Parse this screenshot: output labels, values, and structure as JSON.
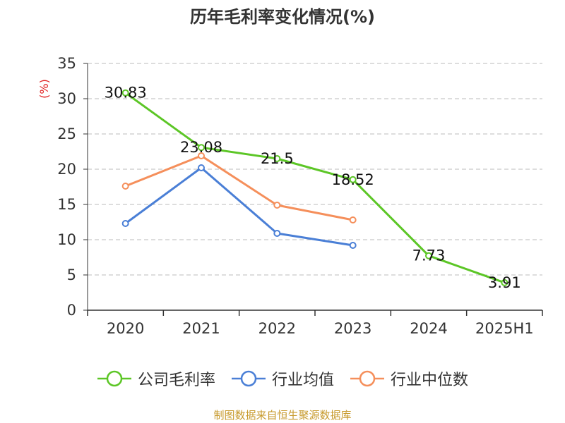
{
  "chart_data": {
    "type": "line",
    "title": "历年毛利率变化情况(%)",
    "ylabel": "(%)",
    "xlabel": "",
    "categories": [
      "2020",
      "2021",
      "2022",
      "2023",
      "2024",
      "2025H1"
    ],
    "ylim": [
      0,
      35
    ],
    "yticks": [
      0,
      5,
      10,
      15,
      20,
      25,
      30,
      35
    ],
    "grid": true,
    "legend_position": "bottom",
    "series": [
      {
        "name": "公司毛利率",
        "color": "#5cc626",
        "values": [
          30.83,
          23.08,
          21.5,
          18.52,
          7.73,
          3.91
        ],
        "data_labels": [
          "30.83",
          "23.08",
          "21.5",
          "18.52",
          "7.73",
          "3.91"
        ]
      },
      {
        "name": "行业均值",
        "color": "#4a7fd6",
        "values": [
          12.3,
          20.2,
          10.9,
          9.2,
          null,
          null
        ]
      },
      {
        "name": "行业中位数",
        "color": "#f58f5b",
        "values": [
          17.6,
          21.9,
          14.9,
          12.8,
          null,
          null
        ]
      }
    ]
  },
  "source": {
    "text": "制图数据来自恒生聚源数据库",
    "color": "#c79a2c"
  },
  "colors": {
    "axis": "#333333",
    "grid": "#bbbbbb",
    "ylabel": "#e02020"
  }
}
